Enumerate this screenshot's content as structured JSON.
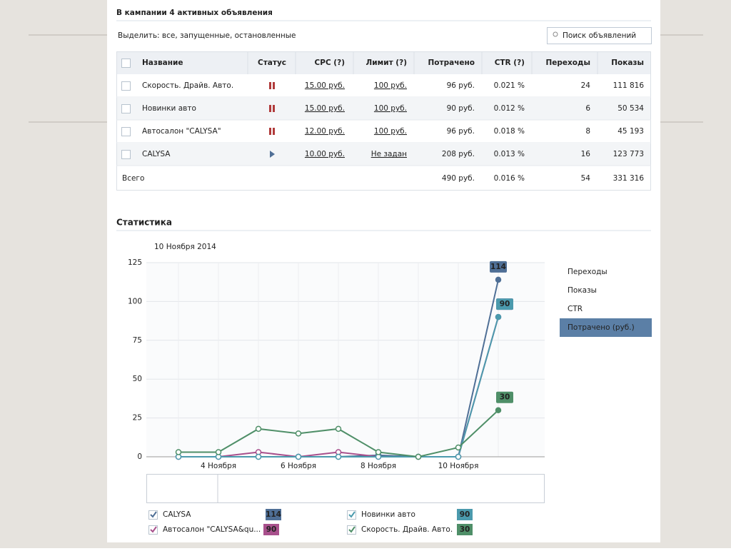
{
  "header": {
    "title": "В кампании 4 активных объявления",
    "select_label": "Выделить: все, запущенные, остановленные",
    "search_placeholder": "Поиск объявлений"
  },
  "table": {
    "columns": [
      "Название",
      "Статус",
      "CPC (?)",
      "Лимит (?)",
      "Потрачено",
      "CTR (?)",
      "Переходы",
      "Показы"
    ],
    "rows": [
      {
        "name": "Скорость. Драйв. Авто.",
        "status": "paused",
        "cpc": "15.00 руб.",
        "limit": "100 руб.",
        "spent": "96 руб.",
        "ctr": "0.021 %",
        "clicks": "24",
        "views": "111 816"
      },
      {
        "name": "Новинки авто",
        "status": "paused",
        "cpc": "15.00 руб.",
        "limit": "100 руб.",
        "spent": "90 руб.",
        "ctr": "0.012 %",
        "clicks": "6",
        "views": "50 534"
      },
      {
        "name": "Автосалон \"CALYSA\"",
        "status": "paused",
        "cpc": "12.00 руб.",
        "limit": "100 руб.",
        "spent": "96 руб.",
        "ctr": "0.018 %",
        "clicks": "8",
        "views": "45 193"
      },
      {
        "name": "CALYSA",
        "status": "active",
        "cpc": "10.00 руб.",
        "limit": "Не задан",
        "spent": "208 руб.",
        "ctr": "0.013 %",
        "clicks": "16",
        "views": "123 773"
      }
    ],
    "total": {
      "name": "Всего",
      "spent": "490 руб.",
      "ctr": "0.016 %",
      "clicks": "54",
      "views": "331 316"
    }
  },
  "section_title": "Статистика",
  "metrics": [
    "Переходы",
    "Показы",
    "CTR",
    "Потрачено (руб.)"
  ],
  "active_metric": 3,
  "chart_data": {
    "type": "line",
    "subtitle": "10 Ноября 2014",
    "categories": [
      null,
      "4 Ноября",
      null,
      "6 Ноября",
      null,
      "8 Ноября",
      null,
      "10 Ноября",
      null
    ],
    "ylim": [
      0,
      125
    ],
    "yticks": [
      0,
      25,
      50,
      75,
      100,
      125
    ],
    "grid": true,
    "series": [
      {
        "name": "CALYSA",
        "color": "#4f6f96",
        "values": [
          0,
          0,
          0,
          0,
          0,
          1,
          0,
          0,
          114
        ]
      },
      {
        "name": "Автосалон \"CALYSA&qu...",
        "color": "#a8508c",
        "values": [
          0,
          0,
          3,
          0,
          3,
          0,
          0,
          0,
          90
        ]
      },
      {
        "name": "Новинки авто",
        "color": "#4b9aad",
        "values": [
          0,
          0,
          0,
          0,
          0,
          0,
          0,
          0,
          90
        ]
      },
      {
        "name": "Скорость. Драйв. Авто.",
        "color": "#4f8f68",
        "values": [
          3,
          3,
          18,
          15,
          18,
          3,
          0,
          6,
          30
        ]
      }
    ]
  }
}
